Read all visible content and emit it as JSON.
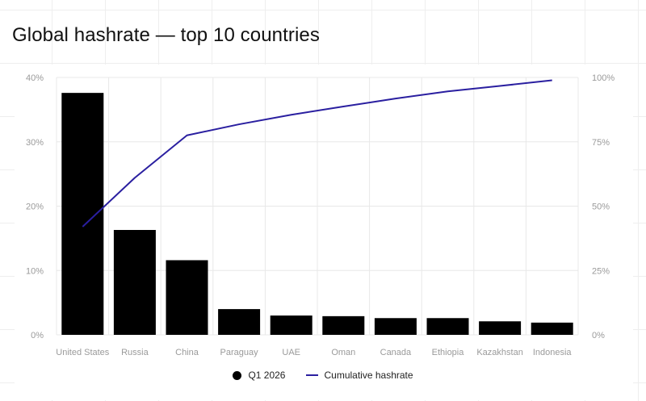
{
  "title": "Global hashrate — top 10 countries",
  "colors": {
    "bars": "#000000",
    "line": "#2a1fa0",
    "grid": "#e8e8e8",
    "ticks": "#9a9a9a"
  },
  "legend": {
    "bars_label": "Q1 2026",
    "line_label": "Cumulative hashrate",
    "placement": "bottom-center"
  },
  "chart_data": {
    "type": "bar",
    "title": "Global hashrate — top 10 countries",
    "categories": [
      "United States",
      "Russia",
      "China",
      "Paraguay",
      "UAE",
      "Oman",
      "Canada",
      "Ethiopia",
      "Kazakhstan",
      "Indonesia"
    ],
    "series": [
      {
        "name": "Q1 2026",
        "type": "bar",
        "axis": "left",
        "values": [
          37.6,
          16.3,
          11.6,
          4.0,
          3.0,
          2.9,
          2.6,
          2.6,
          2.1,
          1.9
        ]
      },
      {
        "name": "Cumulative hashrate",
        "type": "line",
        "axis": "right",
        "values": [
          42,
          61,
          77.5,
          81.8,
          85.5,
          88.7,
          91.8,
          94.6,
          96.7,
          98.9
        ]
      }
    ],
    "y_left": {
      "ticks": [
        "0%",
        "10%",
        "20%",
        "30%",
        "40%"
      ],
      "lim": [
        0,
        40
      ]
    },
    "y_right": {
      "ticks": [
        "0%",
        "25%",
        "50%",
        "75%",
        "100%"
      ],
      "lim": [
        0,
        100
      ]
    },
    "grid": true,
    "legend_placement": "bottom"
  }
}
